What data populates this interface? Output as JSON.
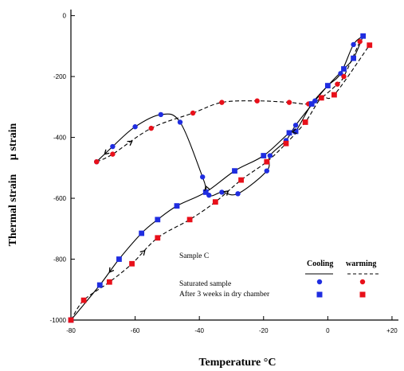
{
  "chart_data": {
    "type": "line",
    "xlabel": "Temperature °C",
    "ylabel": "Thermal strain     µ strain",
    "xlim": [
      -80,
      22
    ],
    "ylim": [
      -1000,
      20
    ],
    "x_ticks": [
      -80,
      -60,
      -40,
      -20,
      0,
      20
    ],
    "x_tick_labels": [
      "-80",
      "-60",
      "-40",
      "-20",
      "0",
      "+20"
    ],
    "y_ticks": [
      0,
      -200,
      -400,
      -600,
      -800,
      -1000
    ],
    "y_tick_labels": [
      "0",
      "-200",
      "-400",
      "-600",
      "-800",
      "-1000"
    ],
    "grid": false,
    "annotation": "Sample C",
    "legend": {
      "columns": [
        "Cooling",
        "warming"
      ],
      "rows": [
        "Saturated sample",
        "After 3 weeks in dry chamber"
      ]
    },
    "colors": {
      "cooling": "#1f2de0",
      "warming": "#e8101a"
    },
    "series": [
      {
        "role": "saturated-cooling",
        "marker": "circle",
        "color": "#1f2de0",
        "line": "solid",
        "points": [
          [
            11,
            -67
          ],
          [
            8,
            -95
          ],
          [
            4,
            -190
          ],
          [
            0,
            -230
          ],
          [
            -4,
            -280
          ],
          [
            -10,
            -360
          ],
          [
            -13,
            -410
          ],
          [
            -18,
            -460
          ],
          [
            -19,
            -510
          ],
          [
            -28,
            -585
          ],
          [
            -33,
            -580
          ],
          [
            -37,
            -590
          ],
          [
            -39,
            -530
          ],
          [
            -46,
            -350
          ],
          [
            -52,
            -325
          ],
          [
            -60,
            -365
          ],
          [
            -67,
            -430
          ],
          [
            -72,
            -480
          ]
        ]
      },
      {
        "role": "saturated-warming",
        "marker": "circle",
        "color": "#e8101a",
        "line": "dashed",
        "points": [
          [
            -72,
            -480
          ],
          [
            -67,
            -455
          ],
          [
            -55,
            -370
          ],
          [
            -42,
            -320
          ],
          [
            -33,
            -285
          ],
          [
            -22,
            -280
          ],
          [
            -12,
            -285
          ],
          [
            -6,
            -290
          ],
          [
            -2,
            -270
          ],
          [
            3,
            -225
          ],
          [
            5,
            -200
          ],
          [
            10,
            -85
          ]
        ]
      },
      {
        "role": "dry-cooling",
        "marker": "square",
        "color": "#1f2de0",
        "line": "solid",
        "points": [
          [
            11,
            -67
          ],
          [
            8,
            -140
          ],
          [
            5,
            -175
          ],
          [
            0,
            -230
          ],
          [
            -5,
            -290
          ],
          [
            -10,
            -380
          ],
          [
            -12,
            -385
          ],
          [
            -20,
            -460
          ],
          [
            -29,
            -510
          ],
          [
            -38,
            -580
          ],
          [
            -47,
            -625
          ],
          [
            -53,
            -670
          ],
          [
            -58,
            -715
          ],
          [
            -65,
            -800
          ],
          [
            -71,
            -885
          ],
          [
            -80,
            -1000
          ]
        ]
      },
      {
        "role": "dry-warming",
        "marker": "square",
        "color": "#e8101a",
        "line": "dashed",
        "points": [
          [
            -80,
            -1000
          ],
          [
            -76,
            -935
          ],
          [
            -68,
            -875
          ],
          [
            -61,
            -815
          ],
          [
            -53,
            -730
          ],
          [
            -43,
            -670
          ],
          [
            -35,
            -612
          ],
          [
            -27,
            -540
          ],
          [
            -19,
            -480
          ],
          [
            -13,
            -420
          ],
          [
            -7,
            -350
          ],
          [
            -2,
            -270
          ],
          [
            2,
            -260
          ],
          [
            13,
            -97
          ]
        ]
      }
    ]
  }
}
